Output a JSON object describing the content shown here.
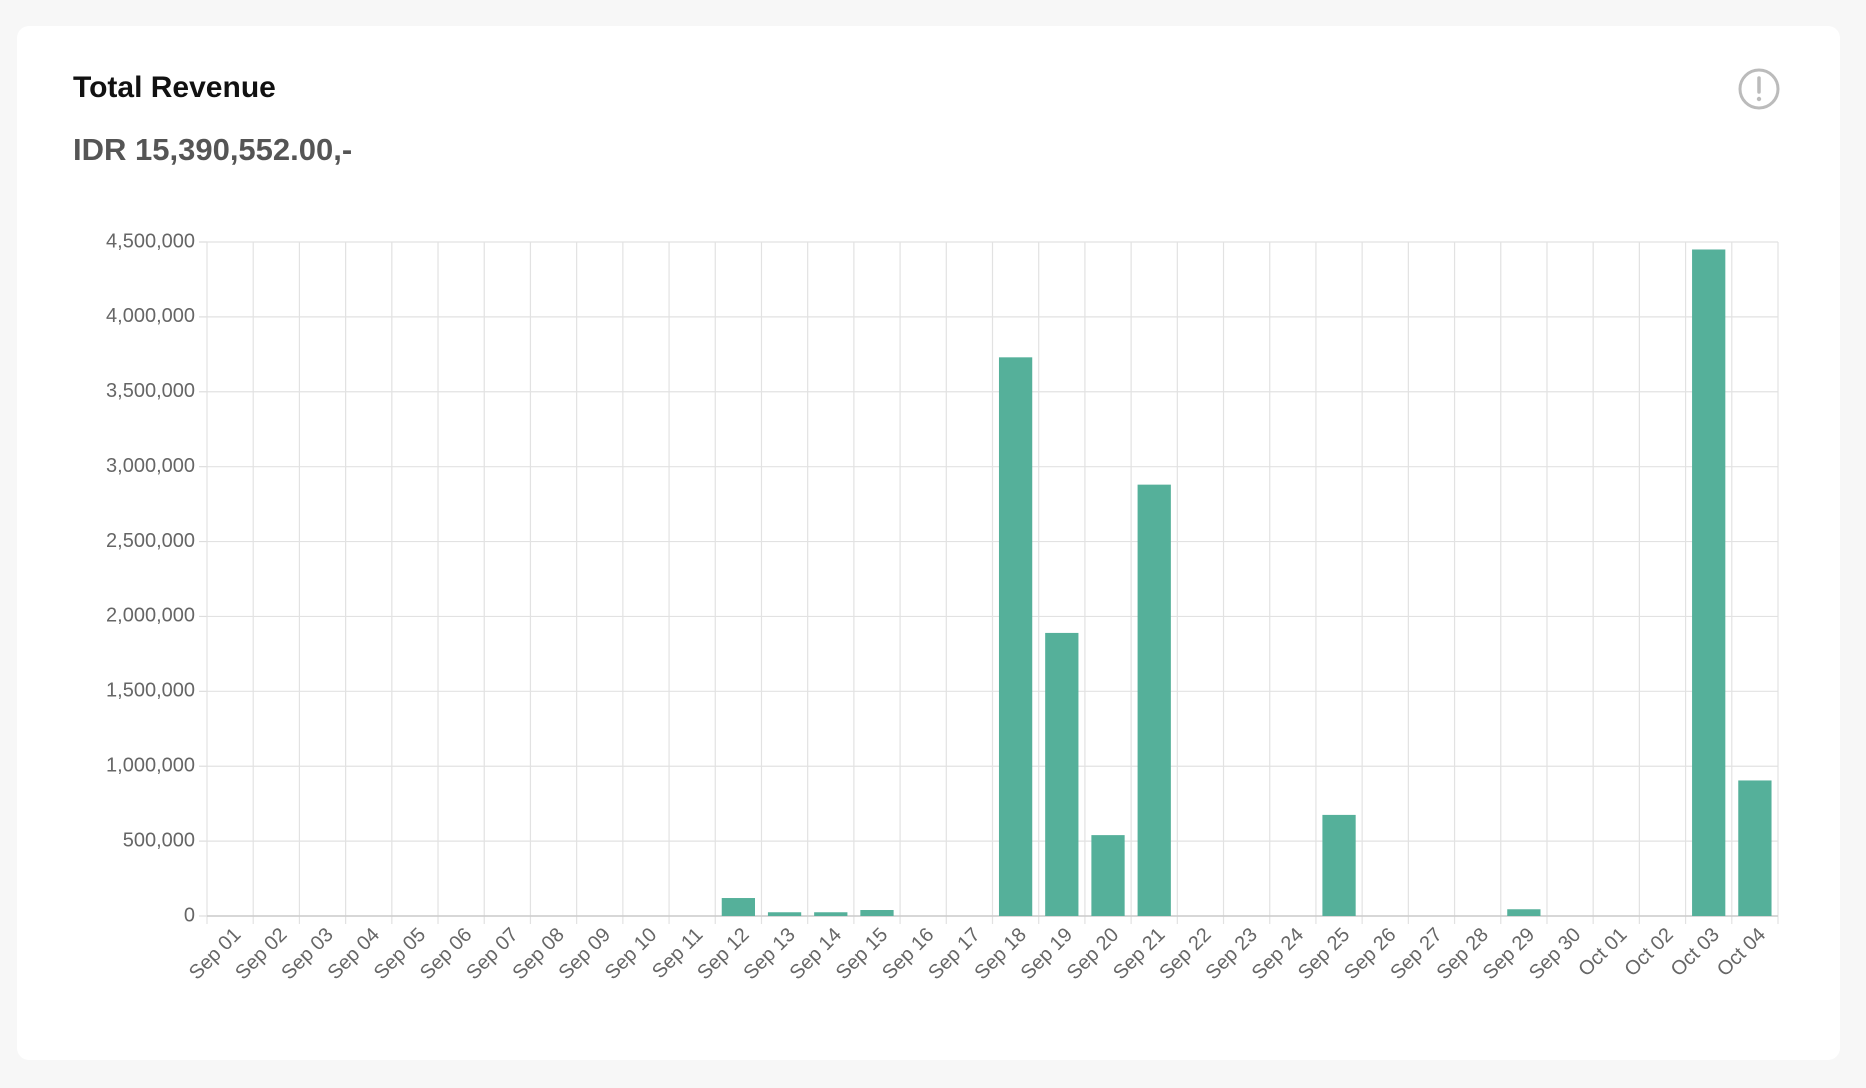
{
  "chart_data": {
    "type": "bar",
    "title": "Total Revenue",
    "subtitle": "IDR 15,390,552.00,-",
    "categories": [
      "Sep 01",
      "Sep 02",
      "Sep 03",
      "Sep 04",
      "Sep 05",
      "Sep 06",
      "Sep 07",
      "Sep 08",
      "Sep 09",
      "Sep 10",
      "Sep 11",
      "Sep 12",
      "Sep 13",
      "Sep 14",
      "Sep 15",
      "Sep 16",
      "Sep 17",
      "Sep 18",
      "Sep 19",
      "Sep 20",
      "Sep 21",
      "Sep 22",
      "Sep 23",
      "Sep 24",
      "Sep 25",
      "Sep 26",
      "Sep 27",
      "Sep 28",
      "Sep 29",
      "Sep 30",
      "Oct 01",
      "Oct 02",
      "Oct 03",
      "Oct 04"
    ],
    "values": [
      0,
      0,
      0,
      0,
      0,
      0,
      0,
      0,
      0,
      0,
      0,
      120000,
      25000,
      25000,
      40000,
      0,
      0,
      3730000,
      1890000,
      540000,
      2880000,
      0,
      0,
      0,
      675000,
      0,
      0,
      0,
      45000,
      0,
      0,
      0,
      4450000,
      905000
    ],
    "color": "#55b09a",
    "ylim": [
      0,
      4500000
    ],
    "yticks": [
      0,
      {
        "value": 500000,
        "label": "500,000"
      },
      {
        "value": 1000000,
        "label": "1,000,000"
      },
      {
        "value": 1500000,
        "label": "1,500,000"
      },
      {
        "value": 2000000,
        "label": "2,000,000"
      },
      {
        "value": 2500000,
        "label": "2,500,000"
      },
      {
        "value": 3000000,
        "label": "3,000,000"
      },
      {
        "value": 3500000,
        "label": "3,500,000"
      },
      {
        "value": 4000000,
        "label": "4,000,000"
      },
      {
        "value": 4500000,
        "label": "4,500,000"
      }
    ],
    "grid": true
  }
}
